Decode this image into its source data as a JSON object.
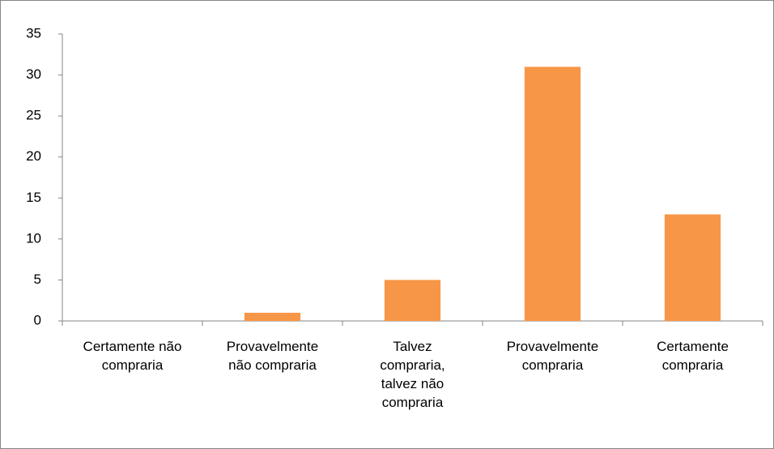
{
  "chart_data": {
    "type": "bar",
    "categories": [
      "Certamente não compraria",
      "Provavelmente não compraria",
      "Talvez compraria, talvez não compraria",
      "Provavelmente compraria",
      "Certamente compraria"
    ],
    "values": [
      0,
      1,
      5,
      31,
      13
    ],
    "color": "#f79646",
    "ylim": [
      0,
      35
    ],
    "yticks": [
      0,
      5,
      10,
      15,
      20,
      25,
      30,
      35
    ],
    "grid": false
  }
}
